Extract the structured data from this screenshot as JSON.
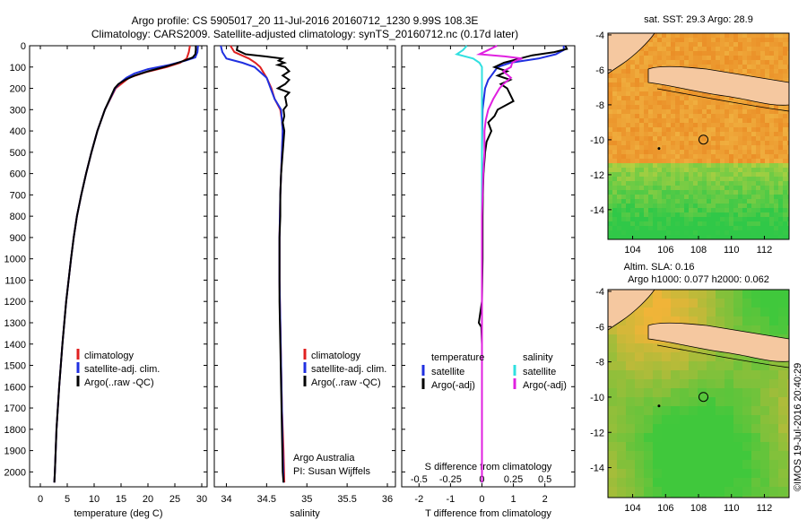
{
  "header": {
    "line1": "Argo profile: CS 5905017_20 11-Jul-2016 20160712_1230 9.99S 108.3E",
    "line2": "Climatology: CARS2009. Satellite-adjusted climatology: synTS_20160712.nc (0.17d later)"
  },
  "chart_data": [
    {
      "type": "line",
      "panel": "temperature",
      "xlabel": "temperature (deg C)",
      "ylabel": "",
      "xlim": [
        -2,
        31
      ],
      "ylim": [
        2070,
        0
      ],
      "xticks": [
        "0",
        "5",
        "10",
        "15",
        "20",
        "25",
        "30"
      ],
      "yticks": [
        "0",
        "100",
        "200",
        "300",
        "400",
        "500",
        "600",
        "700",
        "800",
        "900",
        "1000",
        "1100",
        "1200",
        "1300",
        "1400",
        "1500",
        "1600",
        "1700",
        "1800",
        "1900",
        "2000"
      ],
      "legend": [
        {
          "label": "climatology",
          "color": "#e02020"
        },
        {
          "label": "satellite-adj. clim.",
          "color": "#2030e0"
        },
        {
          "label": "Argo(..raw -QC)",
          "color": "#000000"
        }
      ],
      "series": [
        {
          "name": "climatology",
          "color": "#e02020",
          "depth": [
            0,
            30,
            60,
            80,
            100,
            125,
            150,
            200,
            300,
            400,
            500,
            600,
            700,
            800,
            900,
            1000,
            1200,
            1400,
            1600,
            1800,
            2000,
            2050
          ],
          "values": [
            27.8,
            27.6,
            27.2,
            26.0,
            23.5,
            19.5,
            16.5,
            14.0,
            12.0,
            10.6,
            9.5,
            8.5,
            7.6,
            6.8,
            6.2,
            5.7,
            4.8,
            4.1,
            3.5,
            3.0,
            2.7,
            2.6
          ]
        },
        {
          "name": "satellite-adj. clim.",
          "color": "#2030e0",
          "depth": [
            0,
            30,
            55,
            70,
            90,
            110,
            130,
            150,
            175,
            200,
            300,
            400,
            500,
            600,
            700,
            800,
            900,
            1000,
            1200,
            1400,
            1600,
            1800,
            2000,
            2050
          ],
          "values": [
            29.3,
            29.2,
            28.8,
            27.0,
            24.0,
            20.0,
            17.5,
            16.0,
            14.8,
            13.9,
            12.0,
            10.6,
            9.5,
            8.5,
            7.6,
            6.8,
            6.2,
            5.7,
            4.8,
            4.1,
            3.5,
            3.0,
            2.7,
            2.6
          ]
        },
        {
          "name": "Argo",
          "color": "#000000",
          "depth": [
            0,
            20,
            40,
            55,
            70,
            85,
            100,
            120,
            140,
            160,
            180,
            200,
            300,
            400,
            500,
            600,
            700,
            800,
            900,
            1000,
            1200,
            1400,
            1600,
            1800,
            2000,
            2050
          ],
          "values": [
            28.9,
            28.9,
            28.8,
            28.3,
            26.8,
            25.0,
            23.0,
            20.0,
            17.5,
            15.8,
            14.5,
            13.8,
            12.0,
            10.6,
            9.5,
            8.5,
            7.6,
            6.8,
            6.2,
            5.7,
            4.8,
            4.1,
            3.5,
            3.0,
            2.7,
            2.6
          ]
        }
      ]
    },
    {
      "type": "line",
      "panel": "salinity",
      "xlabel": "salinity",
      "xlim": [
        33.85,
        36.1
      ],
      "ylim": [
        2070,
        0
      ],
      "xticks": [
        "34",
        "34.5",
        "35",
        "35.5",
        "36"
      ],
      "legend": [
        {
          "label": "climatology",
          "color": "#e02020"
        },
        {
          "label": "satellite-adj. clim.",
          "color": "#2030e0"
        },
        {
          "label": "Argo(..raw -QC)",
          "color": "#000000"
        }
      ],
      "annotation": [
        "Argo Australia",
        "PI: Susan Wijffels"
      ],
      "series": [
        {
          "name": "climatology",
          "color": "#e02020",
          "depth": [
            0,
            30,
            60,
            80,
            100,
            150,
            200,
            250,
            300,
            350,
            400,
            500,
            700,
            900,
            1100,
            1300,
            1500,
            1700,
            1900,
            2050
          ],
          "values": [
            34.05,
            34.1,
            34.28,
            34.36,
            34.42,
            34.5,
            34.56,
            34.6,
            34.67,
            34.69,
            34.7,
            34.69,
            34.67,
            34.66,
            34.66,
            34.67,
            34.68,
            34.69,
            34.71,
            34.72
          ]
        },
        {
          "name": "satellite-adj. clim.",
          "color": "#2030e0",
          "depth": [
            0,
            30,
            60,
            80,
            100,
            150,
            200,
            250,
            300,
            350,
            400,
            500,
            700,
            900,
            1100,
            1300,
            1500,
            1700,
            1900,
            2050
          ],
          "values": [
            33.93,
            33.95,
            34.0,
            34.2,
            34.35,
            34.5,
            34.55,
            34.6,
            34.68,
            34.69,
            34.7,
            34.69,
            34.67,
            34.66,
            34.66,
            34.67,
            34.68,
            34.69,
            34.7,
            34.71
          ]
        },
        {
          "name": "Argo",
          "color": "#000000",
          "depth": [
            0,
            20,
            40,
            50,
            60,
            70,
            80,
            90,
            100,
            120,
            140,
            160,
            180,
            200,
            220,
            240,
            260,
            280,
            300,
            330,
            360,
            400,
            450,
            500,
            600,
            700,
            800,
            900,
            1000,
            1200,
            1400,
            1600,
            1800,
            2000,
            2050
          ],
          "values": [
            34.14,
            34.13,
            34.24,
            34.48,
            34.69,
            34.65,
            34.72,
            34.64,
            34.73,
            34.78,
            34.7,
            34.78,
            34.73,
            34.64,
            34.78,
            34.73,
            34.74,
            34.75,
            34.71,
            34.72,
            34.7,
            34.72,
            34.71,
            34.7,
            34.68,
            34.67,
            34.67,
            34.66,
            34.66,
            34.66,
            34.67,
            34.68,
            34.69,
            34.7,
            34.71
          ]
        }
      ]
    },
    {
      "type": "line",
      "panel": "difference",
      "xlabel": "T difference from climatology",
      "xlabel_top": "S difference from climatology",
      "xlim": [
        -2.55,
        2.95
      ],
      "ylim": [
        2070,
        0
      ],
      "xticks": [
        "-2",
        "-1",
        "0",
        "1",
        "2"
      ],
      "xticks_top": [
        "-0.5",
        "-0.25",
        "0",
        "0.25",
        "0.5"
      ],
      "legend_temperature": {
        "title": "temperature",
        "entries": [
          {
            "label": "satellite",
            "color": "#2030e0"
          },
          {
            "label": "Argo(-adj)",
            "color": "#000000"
          }
        ]
      },
      "legend_salinity": {
        "title": "salinity",
        "entries": [
          {
            "label": "satellite",
            "color": "#30e0e0"
          },
          {
            "label": "Argo(-adj)",
            "color": "#e020e0"
          }
        ]
      },
      "series": [
        {
          "name": "T satellite",
          "color": "#2030e0",
          "depth": [
            0,
            20,
            40,
            60,
            80,
            100,
            120,
            140,
            160,
            200,
            300,
            500,
            1000,
            2050
          ],
          "values": [
            2.6,
            2.6,
            2.35,
            1.8,
            0.9,
            0.5,
            0.4,
            0.3,
            0.2,
            0.1,
            0.02,
            0.0,
            0.0,
            0.0
          ]
        },
        {
          "name": "T Argo(-adj)",
          "color": "#000000",
          "depth": [
            0,
            15,
            30,
            45,
            60,
            80,
            100,
            120,
            140,
            160,
            180,
            200,
            230,
            260,
            300,
            330,
            360,
            400,
            450,
            500,
            600,
            700,
            800,
            900,
            1000,
            1200,
            1300,
            1320,
            1400,
            1600,
            1800,
            2000,
            2050
          ],
          "values": [
            2.65,
            2.7,
            2.3,
            1.6,
            1.2,
            0.7,
            0.4,
            0.8,
            0.5,
            0.9,
            0.6,
            0.8,
            0.9,
            1.0,
            0.5,
            0.4,
            0.2,
            0.3,
            0.15,
            0.1,
            0.05,
            0.03,
            0.02,
            0.02,
            0.02,
            0.0,
            -0.1,
            -0.02,
            0.0,
            0.0,
            0.0,
            0.0,
            0.0
          ]
        },
        {
          "name": "S satellite",
          "color": "#30e0e0",
          "depth": [
            0,
            20,
            40,
            60,
            80,
            100,
            150,
            200,
            300,
            500,
            1000,
            2050
          ],
          "values": [
            -0.12,
            -0.15,
            -0.2,
            -0.07,
            -0.02,
            0.0,
            0.0,
            0.0,
            0.0,
            0.0,
            0.0,
            0.0
          ]
        },
        {
          "name": "S Argo(-adj)",
          "color": "#e020e0",
          "depth": [
            0,
            20,
            40,
            50,
            60,
            70,
            80,
            100,
            120,
            150,
            180,
            200,
            250,
            300,
            350,
            400,
            500,
            600,
            800,
            1000,
            1400,
            1800,
            2050
          ],
          "values": [
            0.12,
            0.05,
            -0.02,
            0.18,
            0.32,
            0.27,
            0.24,
            0.23,
            0.17,
            0.23,
            0.17,
            0.14,
            0.09,
            0.05,
            0.03,
            0.02,
            0.02,
            0.01,
            0.0,
            0.0,
            0.0,
            0.0,
            0.0
          ]
        }
      ]
    }
  ],
  "maps": [
    {
      "title": "sat. SST: 29.3 Argo: 28.9",
      "xticks": [
        "104",
        "106",
        "108",
        "110",
        "112"
      ],
      "yticks": [
        "-4",
        "-6",
        "-8",
        "-10",
        "-12",
        "-14"
      ]
    },
    {
      "title_line1": "Altim. SLA: 0.16",
      "title_line2": "Argo h1000: 0.077 h2000: 0.062",
      "xticks": [
        "104",
        "106",
        "108",
        "110",
        "112"
      ],
      "yticks": [
        "-4",
        "-6",
        "-8",
        "-10",
        "-12",
        "-14"
      ]
    }
  ],
  "credit": "©IMOS 19-Jul-2016 20:40:29",
  "colors": {
    "ocean_hot": "#e8a030",
    "ocean_cool": "#30c040",
    "land": "#f5c8a0"
  }
}
